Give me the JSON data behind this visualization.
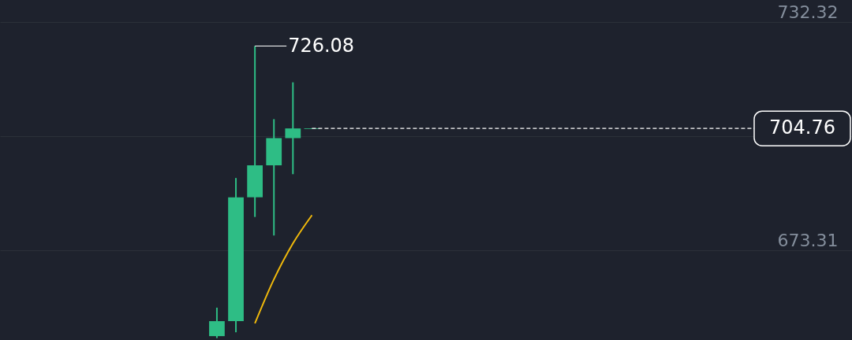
{
  "chart_data": {
    "type": "candlestick",
    "categories": [
      null,
      null,
      null,
      null,
      null,
      null,
      null,
      null,
      null,
      null,
      null,
      null,
      null,
      null,
      null,
      null,
      null,
      null,
      null,
      null,
      null,
      null,
      null,
      null,
      null,
      null,
      null,
      null,
      null,
      null,
      null,
      null,
      null,
      null,
      null,
      null,
      null,
      null,
      null,
      null,
      null,
      null,
      null,
      null,
      null
    ],
    "ohlc": [
      null,
      null,
      null,
      null,
      null,
      null,
      null,
      null,
      null,
      null,
      null,
      [
        651.0,
        658.37,
        650.5,
        654.88
      ],
      [
        654.88,
        691.93,
        652.0,
        686.94
      ],
      [
        686.94,
        726.08,
        681.85,
        695.21
      ],
      [
        695.21,
        707.16,
        677.05,
        702.25
      ],
      [
        702.25,
        716.69,
        692.92,
        704.76
      ],
      [
        704.6,
        704.76,
        704.6,
        704.76
      ],
      null,
      null,
      null,
      null,
      null,
      null,
      null,
      null,
      null,
      null,
      null,
      null,
      null,
      null,
      null,
      null,
      null,
      null,
      null,
      null,
      null,
      null,
      null,
      null,
      null,
      null,
      null,
      null
    ],
    "color": "#2ebd85",
    "series": [
      {
        "type": "line",
        "color": "#f0b90b",
        "values": [
          null,
          null,
          null,
          null,
          null,
          null,
          null,
          null,
          null,
          null,
          null,
          null,
          null,
          654.3,
          665.7,
          675.0,
          682.3,
          null,
          null,
          null,
          null,
          null,
          null,
          null,
          null,
          null,
          null,
          null,
          null,
          null,
          null,
          null,
          null,
          null,
          null,
          null,
          null,
          null,
          null,
          null,
          null,
          null,
          null,
          null,
          null
        ]
      }
    ],
    "ylim": [
      650,
      738
    ],
    "yticks": [
      673.31,
      {
        "value": 702.81,
        "label": null
      },
      732.32
    ],
    "grid": "y",
    "tick_labels": "y",
    "ref_lines": [
      {
        "axis": "y",
        "value": 704.76,
        "label": "704.76",
        "line_style": "dashed",
        "color": "#ffffff"
      }
    ],
    "annotations": [
      "726.08"
    ]
  }
}
